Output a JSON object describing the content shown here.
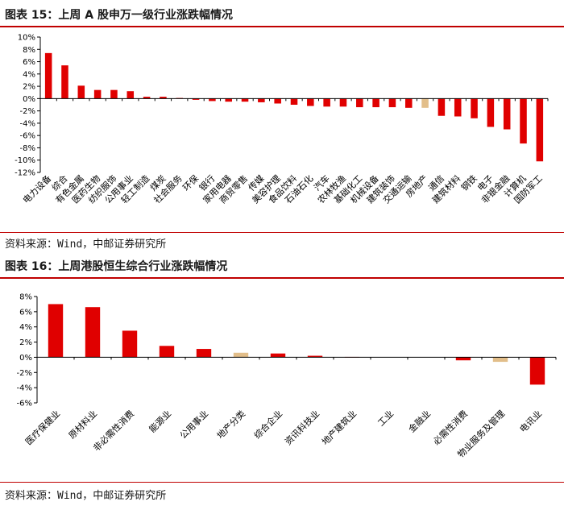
{
  "figure1": {
    "title": "图表 15：上周 A 股申万一级行业涨跌幅情况",
    "source": "资料来源：Wind，中邮证券研究所"
  },
  "figure2": {
    "title": "图表 16：上周港股恒生综合行业涨跌幅情况",
    "source": "资料来源：Wind，中邮证券研究所"
  },
  "colors": {
    "red": "#e00000",
    "tan": "#e2be8a",
    "accent": "#c00000"
  },
  "chart_data": [
    {
      "type": "bar",
      "categories": [
        "电力设备",
        "综合",
        "有色金属",
        "医药生物",
        "纺织服饰",
        "公用事业",
        "轻工制造",
        "煤炭",
        "社会服务",
        "环保",
        "银行",
        "家用电器",
        "商贸零售",
        "传媒",
        "美容护理",
        "食品饮料",
        "石油石化",
        "汽车",
        "农林牧渔",
        "基础化工",
        "机械设备",
        "建筑装饰",
        "交通运输",
        "房地产",
        "通信",
        "建筑材料",
        "钢铁",
        "电子",
        "非银金融",
        "计算机",
        "国防军工"
      ],
      "values": [
        7.4,
        5.4,
        2.1,
        1.4,
        1.4,
        1.2,
        0.3,
        0.3,
        0.1,
        -0.2,
        -0.4,
        -0.5,
        -0.5,
        -0.6,
        -0.8,
        -1.0,
        -1.2,
        -1.3,
        -1.3,
        -1.4,
        -1.4,
        -1.4,
        -1.5,
        -1.5,
        -2.8,
        -2.9,
        -3.2,
        -4.6,
        -5.0,
        -7.3,
        -10.2
      ],
      "highlight": [
        23
      ],
      "ylim": [
        -12,
        10
      ],
      "yticks": [
        "10%",
        "8%",
        "6%",
        "4%",
        "2%",
        "0%",
        "-2%",
        "-4%",
        "-6%",
        "-8%",
        "-10%",
        "-12%"
      ]
    },
    {
      "type": "bar",
      "categories": [
        "医疗保健业",
        "原材料业",
        "非必需性消费",
        "能源业",
        "公用事业",
        "地产分类",
        "综合企业",
        "资讯科技业",
        "地产建筑业",
        "工业",
        "金融业",
        "必需性消费",
        "物业服务及管理",
        "电讯业"
      ],
      "values": [
        7.0,
        6.6,
        3.5,
        1.5,
        1.1,
        0.6,
        0.5,
        0.2,
        0.05,
        0.0,
        0.0,
        -0.4,
        -0.6,
        -3.6
      ],
      "highlight": [
        5,
        12
      ],
      "ylim": [
        -6,
        8
      ],
      "yticks": [
        "8%",
        "6%",
        "4%",
        "2%",
        "0%",
        "-2%",
        "-4%",
        "-6%"
      ]
    }
  ]
}
